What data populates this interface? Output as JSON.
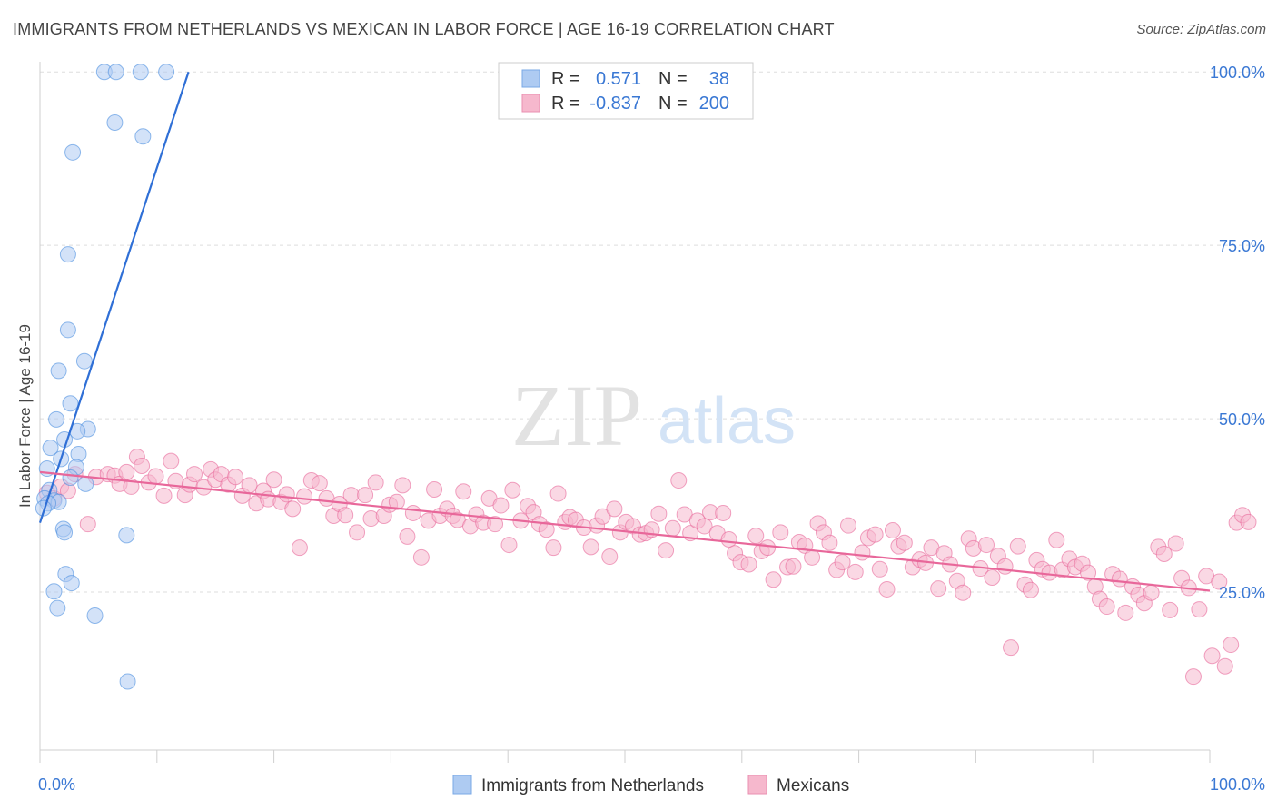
{
  "title": "IMMIGRANTS FROM NETHERLANDS VS MEXICAN IN LABOR FORCE | AGE 16-19 CORRELATION CHART",
  "source": "Source: ZipAtlas.com",
  "watermark": {
    "zip": "ZIP",
    "atlas": "atlas"
  },
  "colors": {
    "blue": "#4a8de0",
    "blue_fill": "#aecbf2",
    "pink": "#e8679a",
    "pink_fill": "#f6b8cd",
    "value_text": "#3a78d4",
    "grid": "#dddddd"
  },
  "legend_top": [
    {
      "r_label": "R =",
      "r_value": "0.571",
      "n_label": "N =",
      "n_value": "38",
      "color": "blue"
    },
    {
      "r_label": "R =",
      "r_value": "-0.837",
      "n_label": "N =",
      "n_value": "200",
      "color": "pink"
    }
  ],
  "chart_data": {
    "type": "scatter",
    "title": "IMMIGRANTS FROM NETHERLANDS VS MEXICAN IN LABOR FORCE | AGE 16-19 CORRELATION CHART",
    "ylabel": "In Labor Force | Age 16-19",
    "xlabel": "",
    "x_ticks": [
      "0.0%",
      "100.0%"
    ],
    "y_ticks": [
      "25.0%",
      "50.0%",
      "75.0%",
      "100.0%"
    ],
    "y_tick_values": [
      25,
      50,
      75,
      100
    ],
    "xlim": [
      0,
      100
    ],
    "ylim": [
      3,
      101
    ],
    "grid": true,
    "legend_position": "bottom",
    "series": [
      {
        "name": "Immigrants from Netherlands",
        "color": "blue",
        "trend": [
          [
            0,
            35
          ],
          [
            12.7,
            100
          ]
        ],
        "points": [
          [
            5.5,
            100
          ],
          [
            6.5,
            100
          ],
          [
            8.6,
            100
          ],
          [
            10.8,
            100
          ],
          [
            6.4,
            92.7
          ],
          [
            8.8,
            90.7
          ],
          [
            2.8,
            88.4
          ],
          [
            2.4,
            73.7
          ],
          [
            2.4,
            62.8
          ],
          [
            1.6,
            56.9
          ],
          [
            3.8,
            58.3
          ],
          [
            2.6,
            52.2
          ],
          [
            1.4,
            49.9
          ],
          [
            4.1,
            48.5
          ],
          [
            3.2,
            48.2
          ],
          [
            2.1,
            47.0
          ],
          [
            0.9,
            45.8
          ],
          [
            3.3,
            44.9
          ],
          [
            1.8,
            44.2
          ],
          [
            3.1,
            43.0
          ],
          [
            0.6,
            42.8
          ],
          [
            2.6,
            41.5
          ],
          [
            3.9,
            40.6
          ],
          [
            0.8,
            39.7
          ],
          [
            0.4,
            38.5
          ],
          [
            1.2,
            38.2
          ],
          [
            1.6,
            38.0
          ],
          [
            0.7,
            37.8
          ],
          [
            0.3,
            37.1
          ],
          [
            2.0,
            34.1
          ],
          [
            2.1,
            33.6
          ],
          [
            7.4,
            33.2
          ],
          [
            2.2,
            27.6
          ],
          [
            2.7,
            26.3
          ],
          [
            1.2,
            25.1
          ],
          [
            1.5,
            22.7
          ],
          [
            4.7,
            21.6
          ],
          [
            7.5,
            12.1
          ]
        ]
      },
      {
        "name": "Mexicans",
        "color": "pink",
        "trend": [
          [
            0,
            42.3
          ],
          [
            100,
            25.2
          ]
        ],
        "points": [
          [
            0.6,
            39.3
          ],
          [
            1.2,
            38.5
          ],
          [
            1.8,
            40.2
          ],
          [
            2.4,
            39.6
          ],
          [
            3.0,
            42.0
          ],
          [
            4.1,
            34.8
          ],
          [
            4.8,
            41.6
          ],
          [
            5.8,
            42.0
          ],
          [
            6.4,
            41.8
          ],
          [
            6.8,
            40.6
          ],
          [
            7.4,
            42.3
          ],
          [
            7.8,
            40.2
          ],
          [
            8.3,
            44.5
          ],
          [
            8.7,
            43.2
          ],
          [
            9.3,
            40.8
          ],
          [
            9.9,
            41.7
          ],
          [
            10.6,
            38.9
          ],
          [
            11.2,
            43.9
          ],
          [
            11.6,
            41.0
          ],
          [
            12.4,
            39.0
          ],
          [
            12.8,
            40.5
          ],
          [
            13.2,
            42.0
          ],
          [
            14.0,
            40.1
          ],
          [
            14.6,
            42.7
          ],
          [
            15.0,
            41.2
          ],
          [
            15.5,
            42.0
          ],
          [
            16.1,
            40.5
          ],
          [
            16.7,
            41.6
          ],
          [
            17.3,
            38.9
          ],
          [
            17.9,
            40.4
          ],
          [
            18.5,
            37.8
          ],
          [
            19.1,
            39.6
          ],
          [
            19.5,
            38.4
          ],
          [
            20.0,
            41.2
          ],
          [
            20.6,
            38.0
          ],
          [
            21.1,
            39.1
          ],
          [
            21.6,
            37.0
          ],
          [
            22.2,
            31.4
          ],
          [
            22.6,
            38.8
          ],
          [
            23.2,
            41.1
          ],
          [
            23.9,
            40.7
          ],
          [
            24.5,
            38.5
          ],
          [
            25.1,
            36.0
          ],
          [
            25.6,
            37.7
          ],
          [
            26.1,
            36.1
          ],
          [
            26.6,
            39.0
          ],
          [
            27.1,
            33.6
          ],
          [
            27.8,
            39.0
          ],
          [
            28.3,
            35.6
          ],
          [
            28.7,
            40.8
          ],
          [
            29.4,
            36.0
          ],
          [
            29.9,
            37.6
          ],
          [
            30.5,
            38.0
          ],
          [
            31.0,
            40.4
          ],
          [
            31.4,
            33.0
          ],
          [
            31.9,
            36.4
          ],
          [
            32.6,
            30.0
          ],
          [
            33.2,
            35.3
          ],
          [
            33.7,
            39.8
          ],
          [
            34.2,
            36.0
          ],
          [
            34.8,
            37.0
          ],
          [
            35.3,
            36.0
          ],
          [
            35.7,
            35.4
          ],
          [
            36.2,
            39.5
          ],
          [
            36.8,
            34.5
          ],
          [
            37.3,
            36.2
          ],
          [
            37.9,
            35.0
          ],
          [
            38.4,
            38.5
          ],
          [
            38.9,
            34.8
          ],
          [
            39.4,
            37.5
          ],
          [
            40.1,
            31.8
          ],
          [
            40.4,
            39.7
          ],
          [
            41.1,
            35.3
          ],
          [
            41.7,
            37.4
          ],
          [
            42.2,
            36.5
          ],
          [
            42.7,
            34.8
          ],
          [
            43.3,
            34.0
          ],
          [
            43.9,
            31.4
          ],
          [
            44.3,
            39.2
          ],
          [
            44.9,
            35.1
          ],
          [
            45.3,
            35.8
          ],
          [
            45.8,
            35.4
          ],
          [
            46.5,
            34.3
          ],
          [
            47.1,
            31.5
          ],
          [
            47.6,
            34.6
          ],
          [
            48.1,
            35.9
          ],
          [
            48.7,
            30.1
          ],
          [
            49.1,
            37.0
          ],
          [
            49.6,
            33.6
          ],
          [
            50.1,
            35.1
          ],
          [
            50.7,
            34.5
          ],
          [
            51.3,
            33.3
          ],
          [
            51.8,
            33.5
          ],
          [
            52.3,
            34.0
          ],
          [
            52.9,
            36.3
          ],
          [
            53.5,
            31.0
          ],
          [
            54.1,
            34.2
          ],
          [
            54.6,
            41.1
          ],
          [
            55.1,
            36.2
          ],
          [
            55.6,
            33.5
          ],
          [
            56.2,
            35.3
          ],
          [
            56.8,
            34.5
          ],
          [
            57.3,
            36.5
          ],
          [
            57.9,
            33.5
          ],
          [
            58.4,
            36.4
          ],
          [
            58.9,
            32.6
          ],
          [
            59.4,
            30.6
          ],
          [
            59.9,
            29.3
          ],
          [
            60.6,
            29.0
          ],
          [
            61.2,
            33.1
          ],
          [
            61.7,
            30.9
          ],
          [
            62.2,
            31.4
          ],
          [
            62.7,
            26.8
          ],
          [
            63.3,
            33.6
          ],
          [
            63.9,
            28.6
          ],
          [
            64.4,
            28.7
          ],
          [
            64.9,
            32.2
          ],
          [
            65.4,
            31.7
          ],
          [
            66.0,
            30.0
          ],
          [
            66.5,
            34.9
          ],
          [
            67.0,
            33.6
          ],
          [
            67.5,
            32.1
          ],
          [
            68.1,
            28.2
          ],
          [
            68.6,
            29.3
          ],
          [
            69.1,
            34.6
          ],
          [
            69.7,
            27.9
          ],
          [
            70.3,
            30.7
          ],
          [
            70.8,
            32.8
          ],
          [
            71.4,
            33.3
          ],
          [
            71.8,
            28.3
          ],
          [
            72.4,
            25.4
          ],
          [
            72.9,
            33.9
          ],
          [
            73.4,
            31.6
          ],
          [
            73.9,
            32.1
          ],
          [
            74.6,
            28.6
          ],
          [
            75.2,
            29.7
          ],
          [
            75.7,
            29.2
          ],
          [
            76.2,
            31.4
          ],
          [
            76.8,
            25.5
          ],
          [
            77.3,
            30.6
          ],
          [
            77.8,
            29.0
          ],
          [
            78.4,
            26.6
          ],
          [
            78.9,
            24.9
          ],
          [
            79.4,
            32.7
          ],
          [
            79.8,
            31.3
          ],
          [
            80.4,
            28.4
          ],
          [
            80.9,
            31.8
          ],
          [
            81.4,
            27.1
          ],
          [
            81.9,
            30.2
          ],
          [
            82.5,
            28.7
          ],
          [
            83.0,
            17.0
          ],
          [
            83.6,
            31.6
          ],
          [
            84.2,
            26.1
          ],
          [
            84.7,
            25.3
          ],
          [
            85.2,
            29.6
          ],
          [
            85.7,
            28.3
          ],
          [
            86.3,
            27.8
          ],
          [
            86.9,
            32.5
          ],
          [
            87.4,
            28.2
          ],
          [
            88.0,
            29.8
          ],
          [
            88.5,
            28.6
          ],
          [
            89.1,
            29.1
          ],
          [
            89.6,
            27.8
          ],
          [
            90.2,
            25.8
          ],
          [
            90.6,
            24.0
          ],
          [
            91.2,
            22.9
          ],
          [
            91.7,
            27.6
          ],
          [
            92.3,
            26.9
          ],
          [
            92.8,
            22.0
          ],
          [
            93.4,
            25.8
          ],
          [
            93.9,
            24.6
          ],
          [
            94.4,
            23.4
          ],
          [
            95.0,
            24.9
          ],
          [
            95.6,
            31.5
          ],
          [
            96.1,
            30.5
          ],
          [
            96.6,
            22.4
          ],
          [
            97.1,
            32.0
          ],
          [
            97.6,
            27.0
          ],
          [
            98.2,
            25.6
          ],
          [
            98.6,
            12.8
          ],
          [
            99.1,
            22.5
          ],
          [
            99.7,
            27.3
          ],
          [
            100.2,
            15.8
          ],
          [
            100.8,
            26.5
          ],
          [
            101.3,
            14.3
          ],
          [
            101.8,
            17.4
          ],
          [
            102.3,
            35.0
          ],
          [
            102.8,
            36.1
          ],
          [
            103.3,
            35.1
          ]
        ]
      }
    ]
  }
}
